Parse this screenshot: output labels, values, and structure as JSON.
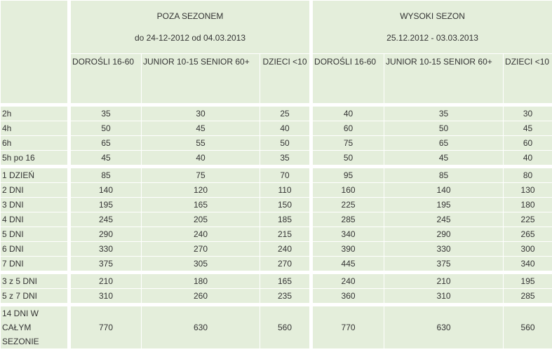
{
  "seasons": [
    {
      "title": "POZA SEZONEM",
      "dates": "do 24-12-2012 od 04.03.2013"
    },
    {
      "title": "WYSOKI SEZON",
      "dates": "25.12.2012 - 03.03.2013"
    }
  ],
  "columns": [
    "DOROŚLI 16-60",
    "JUNIOR 10-15 SENIOR 60+",
    "DZIECI <10",
    "DOROŚLI 16-60",
    "JUNIOR 10-15 SENIOR 60+",
    "DZIECI <10"
  ],
  "groups": [
    [
      {
        "label": "2h",
        "values": [
          "35",
          "30",
          "25",
          "40",
          "35",
          "30"
        ]
      },
      {
        "label": "4h",
        "values": [
          "50",
          "45",
          "40",
          "60",
          "50",
          "45"
        ]
      },
      {
        "label": "6h",
        "values": [
          "65",
          "55",
          "50",
          "75",
          "65",
          "60"
        ]
      },
      {
        "label": "5h po 16",
        "values": [
          "45",
          "40",
          "35",
          "50",
          "45",
          "40"
        ]
      }
    ],
    [
      {
        "label": "1 DZIEŃ",
        "values": [
          "85",
          "75",
          "70",
          "95",
          "85",
          "80"
        ]
      },
      {
        "label": "2 DNI",
        "values": [
          "140",
          "120",
          "110",
          "160",
          "140",
          "130"
        ]
      },
      {
        "label": "3 DNI",
        "values": [
          "195",
          "165",
          "150",
          "225",
          "195",
          "180"
        ]
      },
      {
        "label": "4 DNI",
        "values": [
          "245",
          "205",
          "185",
          "285",
          "245",
          "225"
        ]
      },
      {
        "label": "5 DNI",
        "values": [
          "290",
          "240",
          "215",
          "340",
          "290",
          "265"
        ]
      },
      {
        "label": "6 DNI",
        "values": [
          "330",
          "270",
          "240",
          "390",
          "330",
          "300"
        ]
      },
      {
        "label": "7 DNI",
        "values": [
          "375",
          "305",
          "270",
          "445",
          "375",
          "340"
        ]
      }
    ],
    [
      {
        "label": "3 z 5 DNI",
        "values": [
          "210",
          "180",
          "165",
          "240",
          "210",
          "195"
        ]
      },
      {
        "label": "5 z 7 DNI",
        "values": [
          "310",
          "260",
          "235",
          "360",
          "310",
          "285"
        ]
      }
    ],
    [
      {
        "label": "14 DNI W CAŁYM SEZONIE",
        "values": [
          "770",
          "630",
          "560",
          "770",
          "630",
          "560"
        ]
      }
    ]
  ]
}
